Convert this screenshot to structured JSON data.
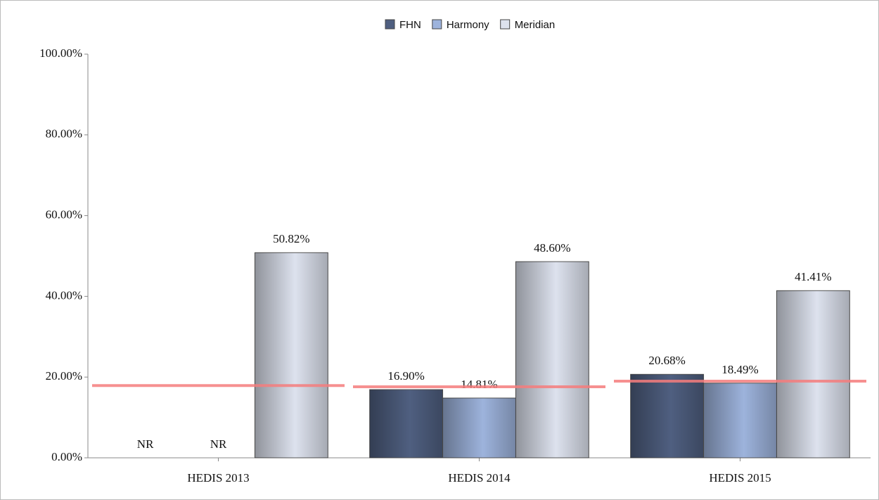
{
  "chart_data": {
    "type": "bar",
    "categories": [
      "HEDIS 2013",
      "HEDIS 2014",
      "HEDIS 2015"
    ],
    "series": [
      {
        "name": "FHN",
        "color": "#4f5f80",
        "values": [
          null,
          16.9,
          20.68
        ],
        "value_labels": [
          "NR",
          "16.90%",
          "20.68%"
        ]
      },
      {
        "name": "Harmony",
        "color": "#9db3dc",
        "values": [
          null,
          14.81,
          18.49
        ],
        "value_labels": [
          "NR",
          "14.81%",
          "18.49%"
        ]
      },
      {
        "name": "Meridian",
        "color": "#dde2ee",
        "values": [
          50.82,
          48.6,
          41.41
        ],
        "value_labels": [
          "50.82%",
          "48.60%",
          "41.41%"
        ]
      }
    ],
    "reference_lines": {
      "color": "#f47c7c",
      "values": [
        17.9,
        17.6,
        19.0
      ]
    },
    "ylim": [
      0,
      100
    ],
    "yticks": [
      {
        "value": 0,
        "label": "0.00%"
      },
      {
        "value": 20,
        "label": "20.00%"
      },
      {
        "value": 40,
        "label": "40.00%"
      },
      {
        "value": 60,
        "label": "60.00%"
      },
      {
        "value": 80,
        "label": "80.00%"
      },
      {
        "value": 100,
        "label": "100.00%"
      }
    ],
    "legend": "top"
  }
}
